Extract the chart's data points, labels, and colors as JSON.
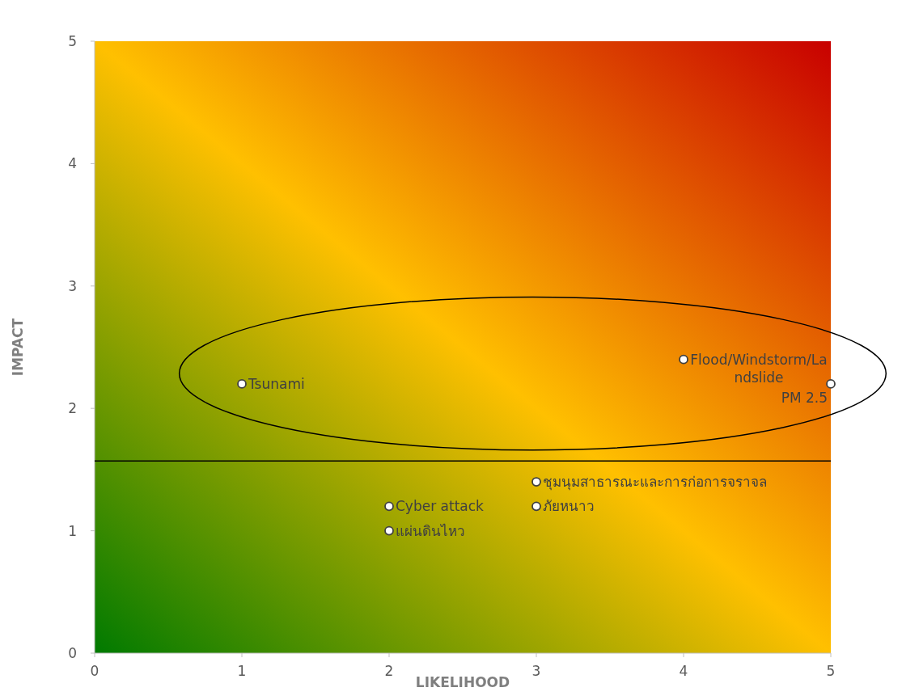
{
  "chart_data": {
    "type": "scatter",
    "xlabel": "LIKELIHOOD",
    "ylabel": "IMPACT",
    "x": [
      1,
      2,
      2,
      3,
      3,
      4,
      5
    ],
    "values": [
      2.2,
      1.2,
      1.0,
      1.2,
      1.4,
      2.4,
      2.2
    ],
    "color": "#ffffff",
    "marker": "circle",
    "grid": false,
    "xlim": [
      0,
      5
    ],
    "ylim": [
      0,
      5
    ],
    "xticks": [
      0,
      1,
      2,
      3,
      4,
      5
    ],
    "yticks": [
      0,
      1,
      2,
      3,
      4,
      5
    ],
    "ref_lines": [
      {
        "axis": "y",
        "value": 1.57,
        "color": "#000000"
      }
    ],
    "annotations": [
      {
        "text": "Tsunami",
        "x": 1,
        "y": 2.2
      },
      {
        "text": "Cyber attack",
        "x": 2,
        "y": 1.2
      },
      {
        "text": "แผ่นดินไหว",
        "x": 2,
        "y": 1.0
      },
      {
        "text": "ภัยหนาว",
        "x": 3,
        "y": 1.2
      },
      {
        "text": "ชุมนุมสาธารณะและการก่อการจราจล",
        "x": 3,
        "y": 1.4
      },
      {
        "text": "Flood/Windstorm/Landslide",
        "x": 4,
        "y": 2.4
      },
      {
        "text": "PM 2.5",
        "x": 5,
        "y": 2.2
      }
    ]
  }
}
